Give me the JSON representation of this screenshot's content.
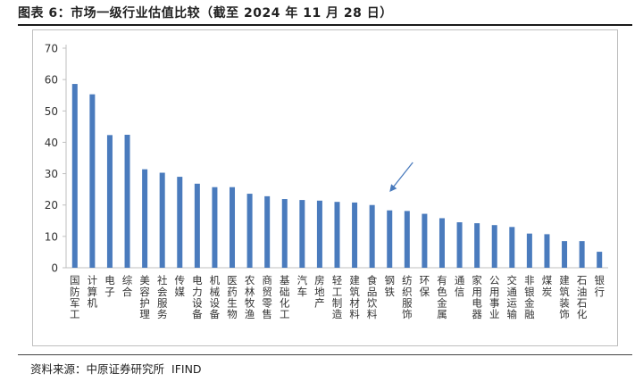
{
  "figure": {
    "title": "图表 6：市场一级行业估值比较（截至 2024 年 11 月 28 日）",
    "source_label": "资料来源：中原证券研究所",
    "source_provider": "IFIND"
  },
  "colors": {
    "bar": "#4a7bbd",
    "arrow": "#4a7bbd",
    "axis": "#bfbfbf",
    "text": "#333333"
  },
  "chart_data": {
    "type": "bar",
    "title": "",
    "xlabel": "",
    "ylabel": "",
    "ylim": [
      0,
      70
    ],
    "yticks": [
      0,
      10,
      20,
      30,
      40,
      50,
      60,
      70
    ],
    "grid": false,
    "legend": "none",
    "categories": [
      "国防军工",
      "计算机",
      "电子",
      "综合",
      "美容护理",
      "社会服务",
      "传媒",
      "电力设备",
      "机械设备",
      "医药生物",
      "农林牧渔",
      "商贸零售",
      "基础化工",
      "汽车",
      "房地产",
      "轻工制造",
      "建筑材料",
      "食品饮料",
      "钢铁",
      "纺织服饰",
      "环保",
      "有色金属",
      "通信",
      "家用电器",
      "公用事业",
      "交通运输",
      "非银金融",
      "煤炭",
      "建筑装饰",
      "石油石化",
      "银行"
    ],
    "values": [
      58.6,
      55.3,
      42.3,
      42.4,
      31.4,
      30.3,
      29.0,
      26.8,
      25.7,
      25.7,
      23.6,
      22.8,
      21.9,
      21.6,
      21.4,
      21.0,
      20.8,
      20.0,
      18.3,
      18.1,
      17.2,
      15.8,
      14.5,
      14.2,
      13.6,
      13.0,
      10.9,
      10.7,
      8.5,
      8.5,
      5.1
    ],
    "annotation": {
      "type": "arrow",
      "target_category": "钢铁"
    }
  }
}
